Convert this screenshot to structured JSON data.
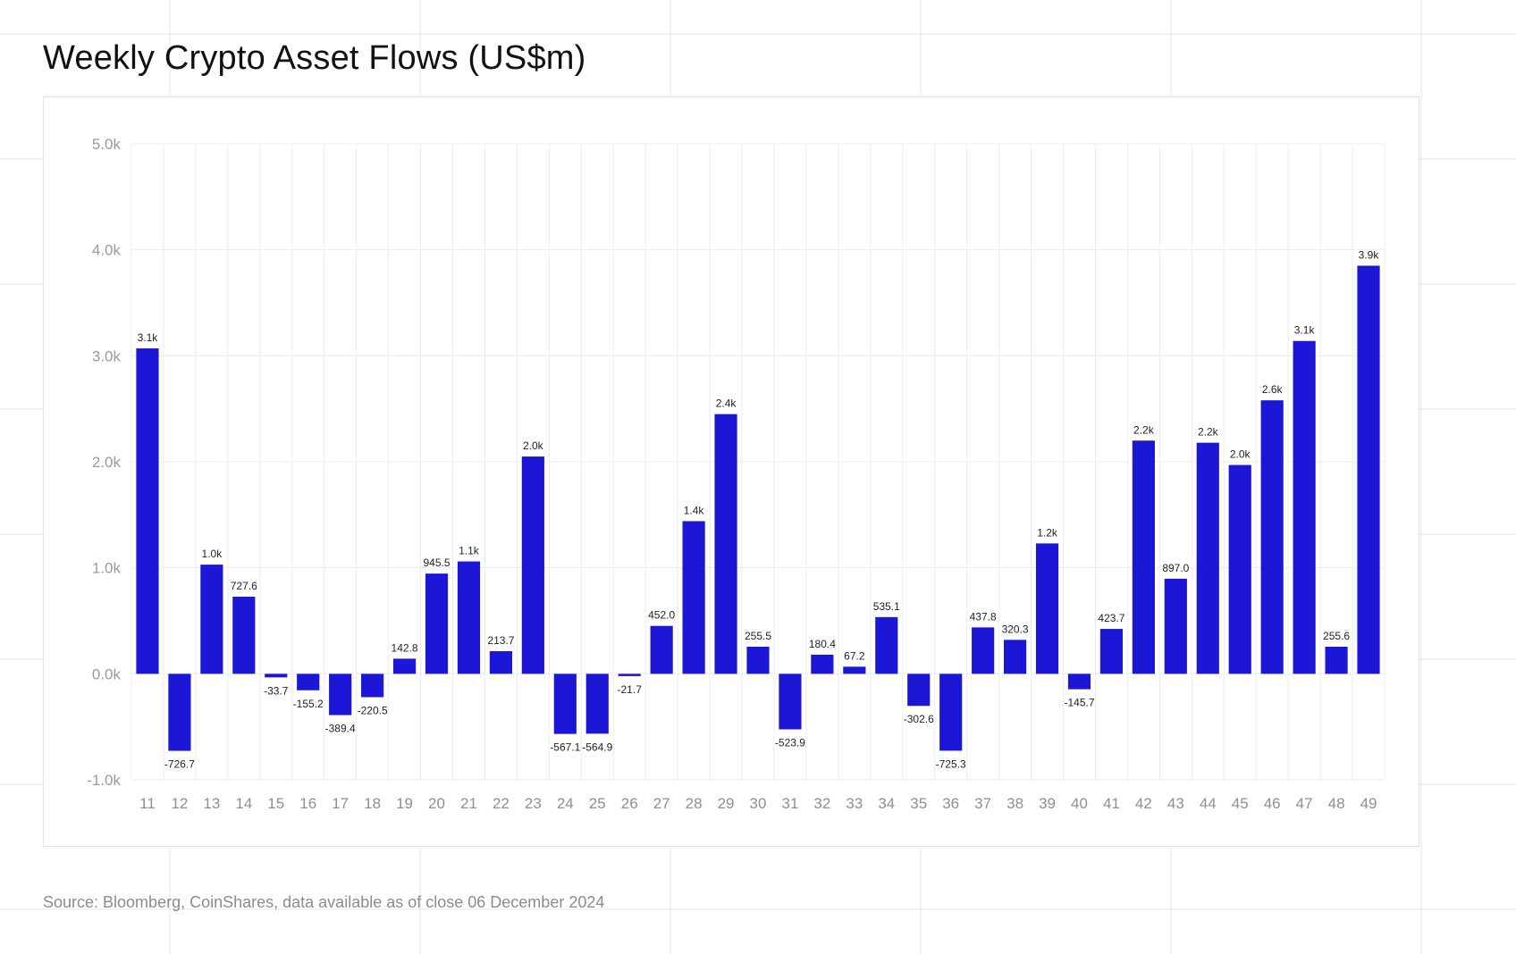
{
  "title": "Weekly Crypto Asset Flows (US$m)",
  "source": "Source: Bloomberg, CoinShares, data available as of close 06 December 2024",
  "colors": {
    "bar": "#1c16d6",
    "grid": "#ececec",
    "background": "#ffffff"
  },
  "chart_data": {
    "type": "bar",
    "title": "Weekly Crypto Asset Flows (US$m)",
    "xlabel": "",
    "ylabel": "",
    "categories": [
      "11",
      "12",
      "13",
      "14",
      "15",
      "16",
      "17",
      "18",
      "19",
      "20",
      "21",
      "22",
      "23",
      "24",
      "25",
      "26",
      "27",
      "28",
      "29",
      "30",
      "31",
      "32",
      "33",
      "34",
      "35",
      "36",
      "37",
      "38",
      "39",
      "40",
      "41",
      "42",
      "43",
      "44",
      "45",
      "46",
      "47",
      "48",
      "49"
    ],
    "values": [
      3070,
      -726.7,
      1030,
      727.6,
      -33.7,
      -155.2,
      -389.4,
      -220.5,
      142.8,
      945.5,
      1060,
      213.7,
      2050,
      -567.1,
      -564.9,
      -21.7,
      452.0,
      1440,
      2450,
      255.5,
      -523.9,
      180.4,
      67.2,
      535.1,
      -302.6,
      -725.3,
      437.8,
      320.3,
      1230,
      -145.7,
      423.7,
      2200,
      897.0,
      2180,
      1970,
      2580,
      3140,
      255.6,
      3850
    ],
    "data_labels": [
      "3.1k",
      "-726.7",
      "1.0k",
      "727.6",
      "-33.7",
      "-155.2",
      "-389.4",
      "-220.5",
      "142.8",
      "945.5",
      "1.1k",
      "213.7",
      "2.0k",
      "-567.1",
      "-564.9",
      "-21.7",
      "452.0",
      "1.4k",
      "2.4k",
      "255.5",
      "-523.9",
      "180.4",
      "67.2",
      "535.1",
      "-302.6",
      "-725.3",
      "437.8",
      "320.3",
      "1.2k",
      "-145.7",
      "423.7",
      "2.2k",
      "897.0",
      "2.2k",
      "2.0k",
      "2.6k",
      "3.1k",
      "255.6",
      "3.9k"
    ],
    "ylim": [
      -1000,
      5000
    ],
    "yticks": [
      -1000,
      0,
      1000,
      2000,
      3000,
      4000,
      5000
    ],
    "ytick_labels": [
      "-1.0k",
      "0.0k",
      "1.0k",
      "2.0k",
      "3.0k",
      "4.0k",
      "5.0k"
    ],
    "grid": true,
    "legend": "none"
  }
}
